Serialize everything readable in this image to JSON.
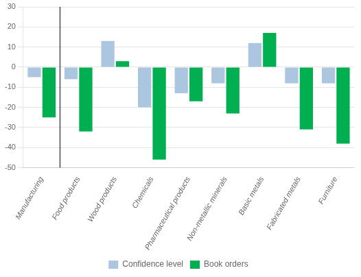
{
  "chart_data": {
    "type": "bar",
    "categories": [
      "Manufacturing",
      "Food products",
      "Wood products",
      "Chemicals",
      "Pharmaceutical products",
      "Non-metallic minerals",
      "Basic metals",
      "Fabricated metals",
      "Furniture"
    ],
    "series": [
      {
        "name": "Confidence level",
        "color": "#adc6e0",
        "values": [
          -5,
          -6,
          13,
          -20,
          -13,
          -8,
          12,
          -8,
          -8
        ]
      },
      {
        "name": "Book orders",
        "color": "#00b050",
        "values": [
          -25,
          -32,
          3,
          -46,
          -17,
          -23,
          17,
          -31,
          -38
        ]
      }
    ],
    "ylim": [
      -50,
      30
    ],
    "yticks": [
      -50,
      -40,
      -30,
      -20,
      -10,
      0,
      10,
      20,
      30
    ],
    "grid": true,
    "legend": "bottom"
  }
}
